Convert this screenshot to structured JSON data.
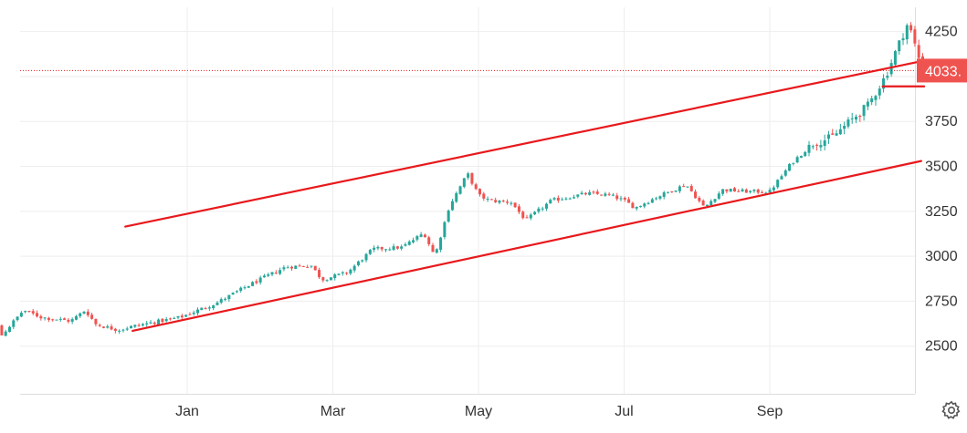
{
  "colors": {
    "up": "#26a69a",
    "down": "#ef5350",
    "trendline": "#e8191c",
    "grid": "#eeeeee",
    "axis_text": "#333333",
    "price_label_bg": "#ef5350",
    "price_label_text": "#ffffff",
    "price_line": "#e8191c"
  },
  "settings_icon": "gear-icon",
  "chart_data": {
    "type": "candlestick",
    "y_ticks": [
      2500,
      2750,
      3000,
      3250,
      3500,
      3750,
      4250
    ],
    "ylim": [
      2235,
      4385
    ],
    "x_month_labels": [
      "Jan",
      "Mar",
      "May",
      "Jul",
      "Sep"
    ],
    "x_month_index": [
      0,
      2,
      4,
      6,
      8
    ],
    "x_months_start_index": -3.3,
    "x_months_end_index": 10.05,
    "current_price": 4033,
    "current_price_label": "4033.",
    "anchors": [
      [
        -3.3,
        2730
      ],
      [
        -3.0,
        2780
      ],
      [
        -2.7,
        2700
      ],
      [
        -2.55,
        2560
      ],
      [
        -2.25,
        2700
      ],
      [
        -2.0,
        2660
      ],
      [
        -1.6,
        2640
      ],
      [
        -1.4,
        2700
      ],
      [
        -1.25,
        2620
      ],
      [
        -0.95,
        2590
      ],
      [
        -0.75,
        2610
      ],
      [
        -0.5,
        2630
      ],
      [
        -0.1,
        2660
      ],
      [
        0.4,
        2740
      ],
      [
        0.85,
        2840
      ],
      [
        1.35,
        2940
      ],
      [
        1.7,
        2950
      ],
      [
        1.85,
        2870
      ],
      [
        2.2,
        2910
      ],
      [
        2.55,
        3040
      ],
      [
        2.95,
        3050
      ],
      [
        3.25,
        3130
      ],
      [
        3.4,
        3000
      ],
      [
        3.6,
        3280
      ],
      [
        3.85,
        3460
      ],
      [
        4.0,
        3340
      ],
      [
        4.15,
        3310
      ],
      [
        4.45,
        3300
      ],
      [
        4.65,
        3200
      ],
      [
        5.0,
        3310
      ],
      [
        5.5,
        3350
      ],
      [
        5.8,
        3340
      ],
      [
        6.0,
        3310
      ],
      [
        6.15,
        3270
      ],
      [
        6.45,
        3330
      ],
      [
        6.85,
        3400
      ],
      [
        7.1,
        3270
      ],
      [
        7.35,
        3370
      ],
      [
        7.7,
        3360
      ],
      [
        8.0,
        3360
      ],
      [
        8.3,
        3520
      ],
      [
        8.6,
        3630
      ],
      [
        8.85,
        3660
      ],
      [
        9.1,
        3750
      ],
      [
        9.35,
        3840
      ],
      [
        9.6,
        4010
      ],
      [
        9.75,
        4160
      ],
      [
        9.9,
        4300
      ],
      [
        10.05,
        4100
      ],
      [
        10.1,
        4033
      ]
    ],
    "trendlines": [
      {
        "x": [
          -0.85,
          10.02
        ],
        "y": [
          3165,
          4080
        ]
      },
      {
        "x": [
          -0.75,
          10.08
        ],
        "y": [
          2585,
          3530
        ]
      },
      {
        "x": [
          9.55,
          10.12
        ],
        "y": [
          3945,
          3945
        ]
      }
    ]
  }
}
